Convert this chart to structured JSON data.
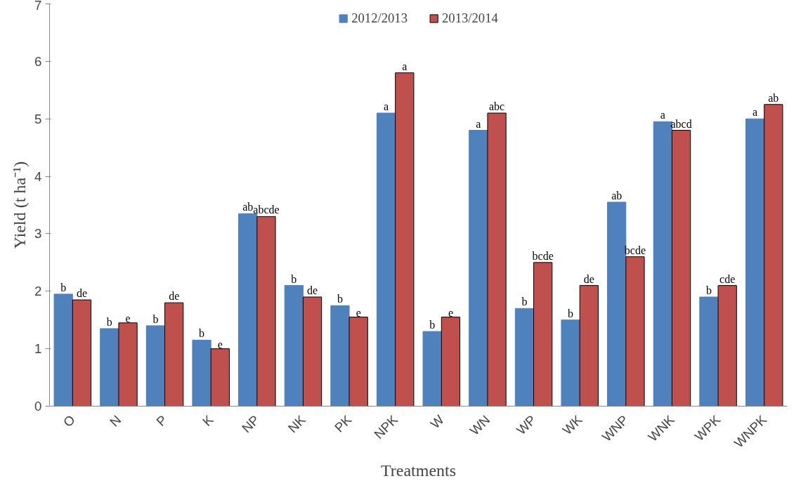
{
  "chart_data": {
    "type": "bar",
    "xlabel": "Treatments",
    "ylabel": "Yield (t ha⁻¹)",
    "categories": [
      "O",
      "N",
      "P",
      "K",
      "NP",
      "NK",
      "PK",
      "NPK",
      "W",
      "WN",
      "WP",
      "WK",
      "WNP",
      "WNK",
      "WPK",
      "WNPK"
    ],
    "ylim": [
      0,
      7
    ],
    "yticks": [
      0,
      1,
      2,
      3,
      4,
      5,
      6,
      7
    ],
    "grid": false,
    "legend": "top",
    "series": [
      {
        "name": "2012/2013",
        "color": "#4f81bd",
        "values": [
          1.95,
          1.35,
          1.4,
          1.15,
          3.35,
          2.1,
          1.75,
          5.1,
          1.3,
          4.8,
          1.7,
          1.5,
          3.55,
          4.95,
          1.9,
          5.0
        ],
        "value_labels": [
          "b",
          "b",
          "b",
          "b",
          "ab",
          "b",
          "b",
          "a",
          "b",
          "a",
          "b",
          "b",
          "ab",
          "a",
          "b",
          "a"
        ]
      },
      {
        "name": "2013/2014",
        "color": "#c0504d",
        "values": [
          1.85,
          1.45,
          1.8,
          1.0,
          3.3,
          1.9,
          1.55,
          5.8,
          1.55,
          5.1,
          2.5,
          2.1,
          2.6,
          4.8,
          2.1,
          5.25
        ],
        "value_labels": [
          "de",
          "e",
          "de",
          "e",
          "abcde",
          "de",
          "e",
          "a",
          "e",
          "abc",
          "bcde",
          "de",
          "bcde",
          "abcd",
          "cde",
          "ab"
        ]
      }
    ]
  }
}
